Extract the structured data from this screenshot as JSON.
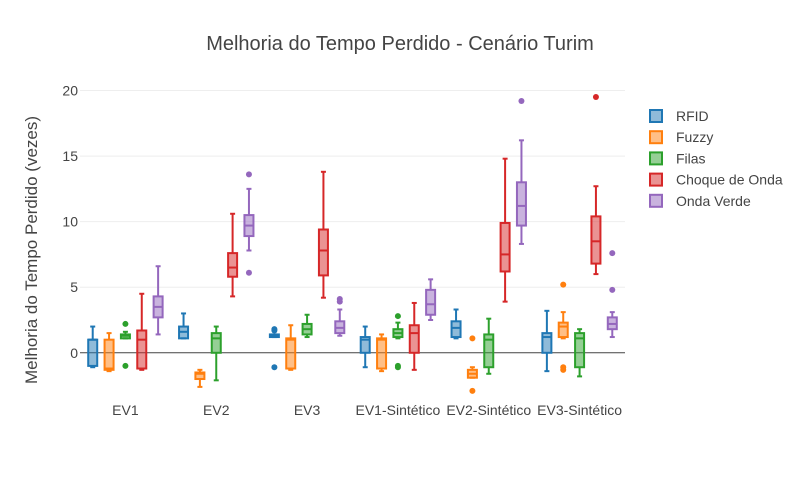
{
  "chart_data": {
    "type": "box",
    "title": "Melhoria do Tempo Perdido - Cenário Turim",
    "xlabel": "",
    "ylabel": "Melhoria do Tempo Perdido (vezes)",
    "ylim": [
      -3.6,
      20.8
    ],
    "yticks": [
      0,
      5,
      10,
      15,
      20
    ],
    "categories": [
      "EV1",
      "EV2",
      "EV3",
      "EV1-Sintético",
      "EV2-Sintético",
      "EV3-Sintético"
    ],
    "grid": true,
    "legend_position": "right",
    "series": [
      {
        "name": "RFID",
        "color": "#1f77b4",
        "boxes": [
          {
            "min": -1.1,
            "q1": -1.0,
            "median": 1.0,
            "q3": 1.0,
            "max": 2.0,
            "outliers": []
          },
          {
            "min": 1.1,
            "q1": 1.1,
            "median": 1.6,
            "q3": 2.0,
            "max": 3.0,
            "outliers": []
          },
          {
            "min": 1.2,
            "q1": 1.2,
            "median": 1.3,
            "q3": 1.4,
            "max": 1.4,
            "outliers": [
              1.8,
              1.7,
              -1.1
            ]
          },
          {
            "min": -1.1,
            "q1": 0.0,
            "median": 1.0,
            "q3": 1.2,
            "max": 2.0,
            "outliers": []
          },
          {
            "min": 1.1,
            "q1": 1.2,
            "median": 1.9,
            "q3": 2.4,
            "max": 3.3,
            "outliers": []
          },
          {
            "min": -1.4,
            "q1": 0.0,
            "median": 1.2,
            "q3": 1.5,
            "max": 3.2,
            "outliers": []
          }
        ]
      },
      {
        "name": "Fuzzy",
        "color": "#ff7f0e",
        "boxes": [
          {
            "min": -1.4,
            "q1": -1.3,
            "median": -1.2,
            "q3": 1.0,
            "max": 1.5,
            "outliers": []
          },
          {
            "min": -2.6,
            "q1": -2.0,
            "median": -1.6,
            "q3": -1.5,
            "max": -1.3,
            "outliers": []
          },
          {
            "min": -1.3,
            "q1": -1.2,
            "median": 1.0,
            "q3": 1.1,
            "max": 2.1,
            "outliers": []
          },
          {
            "min": -1.4,
            "q1": -1.2,
            "median": 1.0,
            "q3": 1.1,
            "max": 1.4,
            "outliers": []
          },
          {
            "min": -1.9,
            "q1": -1.9,
            "median": -1.6,
            "q3": -1.3,
            "max": -1.1,
            "outliers": [
              1.1,
              -2.9
            ]
          },
          {
            "min": 1.1,
            "q1": 1.2,
            "median": 2.0,
            "q3": 2.3,
            "max": 3.1,
            "outliers": [
              5.2,
              -1.1,
              -1.3
            ]
          }
        ]
      },
      {
        "name": "Filas",
        "color": "#2ca02c",
        "boxes": [
          {
            "min": 1.1,
            "q1": 1.1,
            "median": 1.3,
            "q3": 1.4,
            "max": 1.6,
            "outliers": [
              2.2,
              -1.0
            ]
          },
          {
            "min": -2.1,
            "q1": 0.0,
            "median": 1.1,
            "q3": 1.5,
            "max": 2.0,
            "outliers": []
          },
          {
            "min": 1.2,
            "q1": 1.4,
            "median": 1.8,
            "q3": 2.2,
            "max": 2.9,
            "outliers": []
          },
          {
            "min": 1.1,
            "q1": 1.2,
            "median": 1.5,
            "q3": 1.8,
            "max": 2.3,
            "outliers": [
              2.8,
              -1.0,
              -1.1
            ]
          },
          {
            "min": -1.6,
            "q1": -1.1,
            "median": 1.0,
            "q3": 1.4,
            "max": 2.6,
            "outliers": []
          },
          {
            "min": -1.8,
            "q1": -1.1,
            "median": 1.1,
            "q3": 1.5,
            "max": 1.8,
            "outliers": []
          }
        ]
      },
      {
        "name": "Choque de Onda",
        "color": "#d62728",
        "boxes": [
          {
            "min": -1.3,
            "q1": -1.2,
            "median": 1.0,
            "q3": 1.7,
            "max": 4.5,
            "outliers": []
          },
          {
            "min": 4.3,
            "q1": 5.8,
            "median": 6.5,
            "q3": 7.6,
            "max": 10.6,
            "outliers": []
          },
          {
            "min": 4.2,
            "q1": 5.9,
            "median": 7.8,
            "q3": 9.4,
            "max": 13.8,
            "outliers": []
          },
          {
            "min": -1.3,
            "q1": 0.0,
            "median": 1.5,
            "q3": 2.1,
            "max": 3.8,
            "outliers": []
          },
          {
            "min": 3.9,
            "q1": 6.2,
            "median": 7.5,
            "q3": 9.9,
            "max": 14.8,
            "outliers": []
          },
          {
            "min": 6.0,
            "q1": 6.8,
            "median": 8.5,
            "q3": 10.4,
            "max": 12.7,
            "outliers": [
              19.5
            ]
          }
        ]
      },
      {
        "name": "Onda Verde",
        "color": "#9467bd",
        "boxes": [
          {
            "min": 1.4,
            "q1": 2.7,
            "median": 3.5,
            "q3": 4.3,
            "max": 6.6,
            "outliers": []
          },
          {
            "min": 7.8,
            "q1": 8.9,
            "median": 9.7,
            "q3": 10.5,
            "max": 12.5,
            "outliers": [
              13.6,
              6.1
            ]
          },
          {
            "min": 1.3,
            "q1": 1.5,
            "median": 1.9,
            "q3": 2.4,
            "max": 3.3,
            "outliers": [
              4.1,
              3.9
            ]
          },
          {
            "min": 2.5,
            "q1": 2.9,
            "median": 3.7,
            "q3": 4.8,
            "max": 5.6,
            "outliers": []
          },
          {
            "min": 8.3,
            "q1": 9.7,
            "median": 11.2,
            "q3": 13.0,
            "max": 16.2,
            "outliers": [
              19.2
            ]
          },
          {
            "min": 1.2,
            "q1": 1.8,
            "median": 2.2,
            "q3": 2.7,
            "max": 3.1,
            "outliers": [
              7.6,
              4.8
            ]
          }
        ]
      }
    ]
  }
}
